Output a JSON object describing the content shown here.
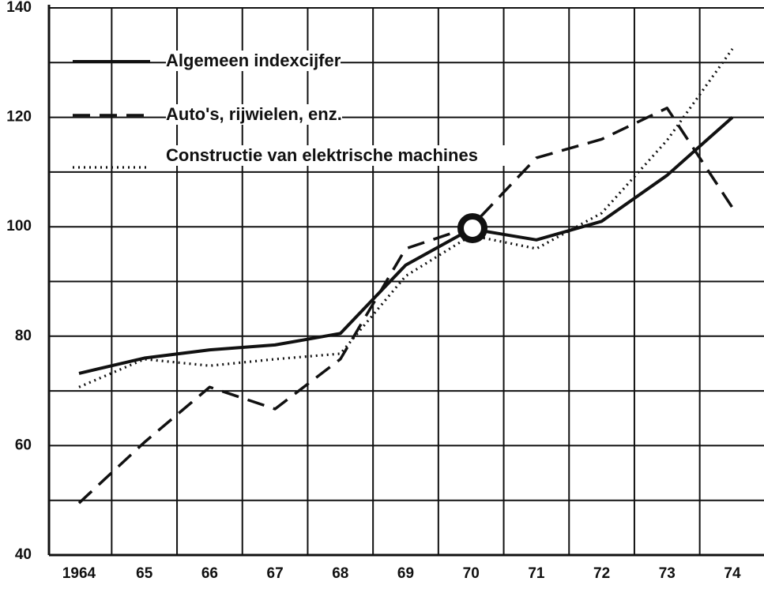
{
  "chart_data": {
    "type": "line",
    "categories": [
      "1964",
      "65",
      "66",
      "67",
      "68",
      "69",
      "70",
      "71",
      "72",
      "73",
      "74"
    ],
    "series": [
      {
        "name": "Algemeen indexcijfer",
        "color": "#111111",
        "dash": "solid",
        "values": [
          73.2,
          76,
          77.5,
          78.4,
          80.5,
          93,
          99.6,
          97.6,
          101,
          109.4,
          120
        ]
      },
      {
        "name": "Auto's, rijwielen, enz.",
        "color": "#111111",
        "dash": "dashed",
        "values": [
          49.5,
          60.6,
          70.7,
          66.7,
          75.8,
          96,
          100,
          112.6,
          116,
          121.7,
          103.5
        ]
      },
      {
        "name": "Constructie van elektrische machines",
        "color": "#111111",
        "dash": "dotted",
        "values": [
          70.7,
          75.8,
          74.6,
          75.8,
          76.8,
          91,
          98.4,
          96,
          102.5,
          115.8,
          132.5
        ]
      }
    ],
    "ylim": [
      40,
      140
    ],
    "yticks": [
      40,
      60,
      80,
      100,
      120,
      140
    ],
    "yticks_minor": [
      50,
      70,
      90,
      110,
      130
    ],
    "grid": true
  }
}
